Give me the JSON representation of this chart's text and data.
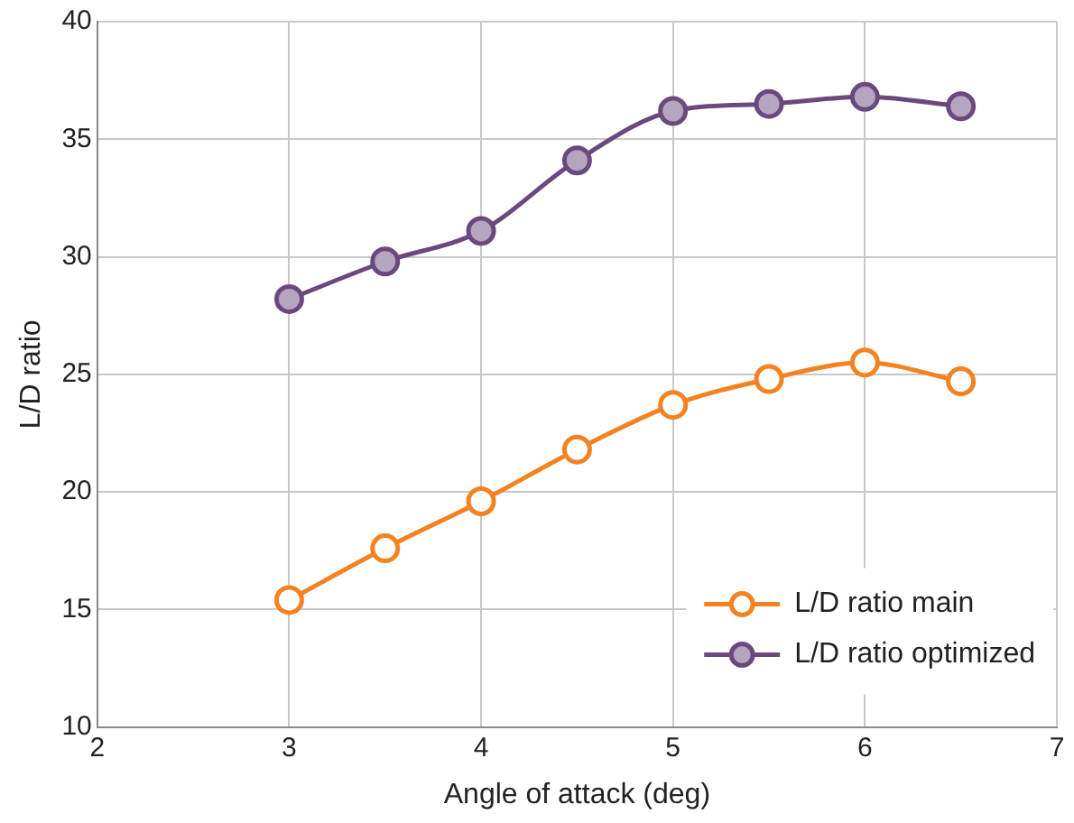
{
  "chart_data": {
    "type": "line",
    "xlabel": "Angle of attack (deg)",
    "ylabel": "L/D ratio",
    "xlim": [
      2,
      7
    ],
    "xticks": [
      2,
      3,
      4,
      5,
      6,
      7
    ],
    "ylim": [
      10,
      40
    ],
    "yticks": [
      10,
      15,
      20,
      25,
      30,
      35,
      40
    ],
    "grid": true,
    "legend": "bottom right",
    "marker": "circle",
    "series": [
      {
        "name": "L/D ratio main",
        "color": "#f58220",
        "x": [
          3,
          3.5,
          4,
          4.5,
          5,
          5.5,
          6,
          6.5
        ],
        "values": [
          15.4,
          17.6,
          19.6,
          21.8,
          23.7,
          24.8,
          25.5,
          24.7
        ]
      },
      {
        "name": "L/D ratio optimized",
        "color": "#6a4a7e",
        "x": [
          3,
          3.5,
          4,
          4.5,
          5,
          5.5,
          6,
          6.5
        ],
        "values": [
          28.2,
          29.8,
          31.1,
          34.1,
          36.2,
          36.5,
          36.8,
          36.4
        ]
      }
    ]
  }
}
